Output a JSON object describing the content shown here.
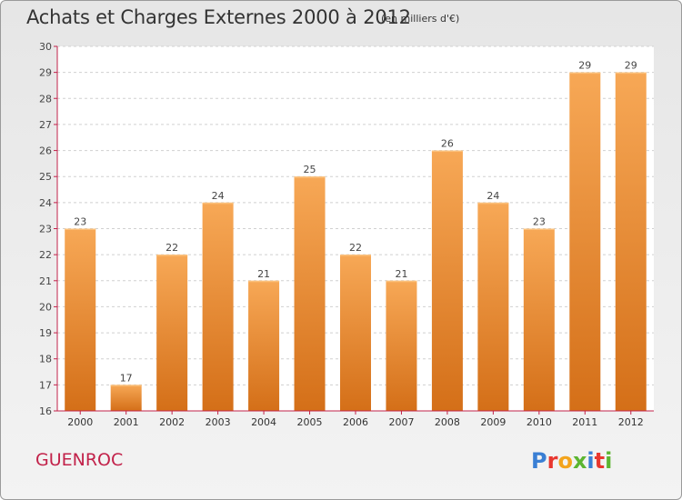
{
  "title": "Achats et Charges Externes 2000 à 2012",
  "subtitle": "(en milliers d'€)",
  "commune": "GUENROC",
  "logo": {
    "letters": [
      "P",
      "r",
      "o",
      "x",
      "i",
      "t",
      "i"
    ],
    "colors": [
      "#3a7fd4",
      "#e8372f",
      "#f3a41c",
      "#5cb531",
      "#3a7fd4",
      "#e8372f",
      "#5cb531"
    ]
  },
  "colors": {
    "bar": "#e8862a",
    "bar_light": "#f7a856",
    "bar_dark": "#d46f18",
    "axis": "#c2224a",
    "grid": "#d0d0d0"
  },
  "chart_data": {
    "type": "bar",
    "title": "Achats et Charges Externes 2000 à 2012",
    "subtitle": "(en milliers d'€)",
    "categories": [
      "2000",
      "2001",
      "2002",
      "2003",
      "2004",
      "2005",
      "2006",
      "2007",
      "2008",
      "2009",
      "2010",
      "2011",
      "2012"
    ],
    "values": [
      23,
      17,
      22,
      24,
      21,
      25,
      22,
      21,
      26,
      24,
      23,
      29,
      29
    ],
    "ylim": [
      16,
      30
    ],
    "yticks": [
      16,
      17,
      18,
      19,
      20,
      21,
      22,
      23,
      24,
      25,
      26,
      27,
      28,
      29,
      30
    ],
    "grid": true,
    "xlabel": "",
    "ylabel": ""
  }
}
